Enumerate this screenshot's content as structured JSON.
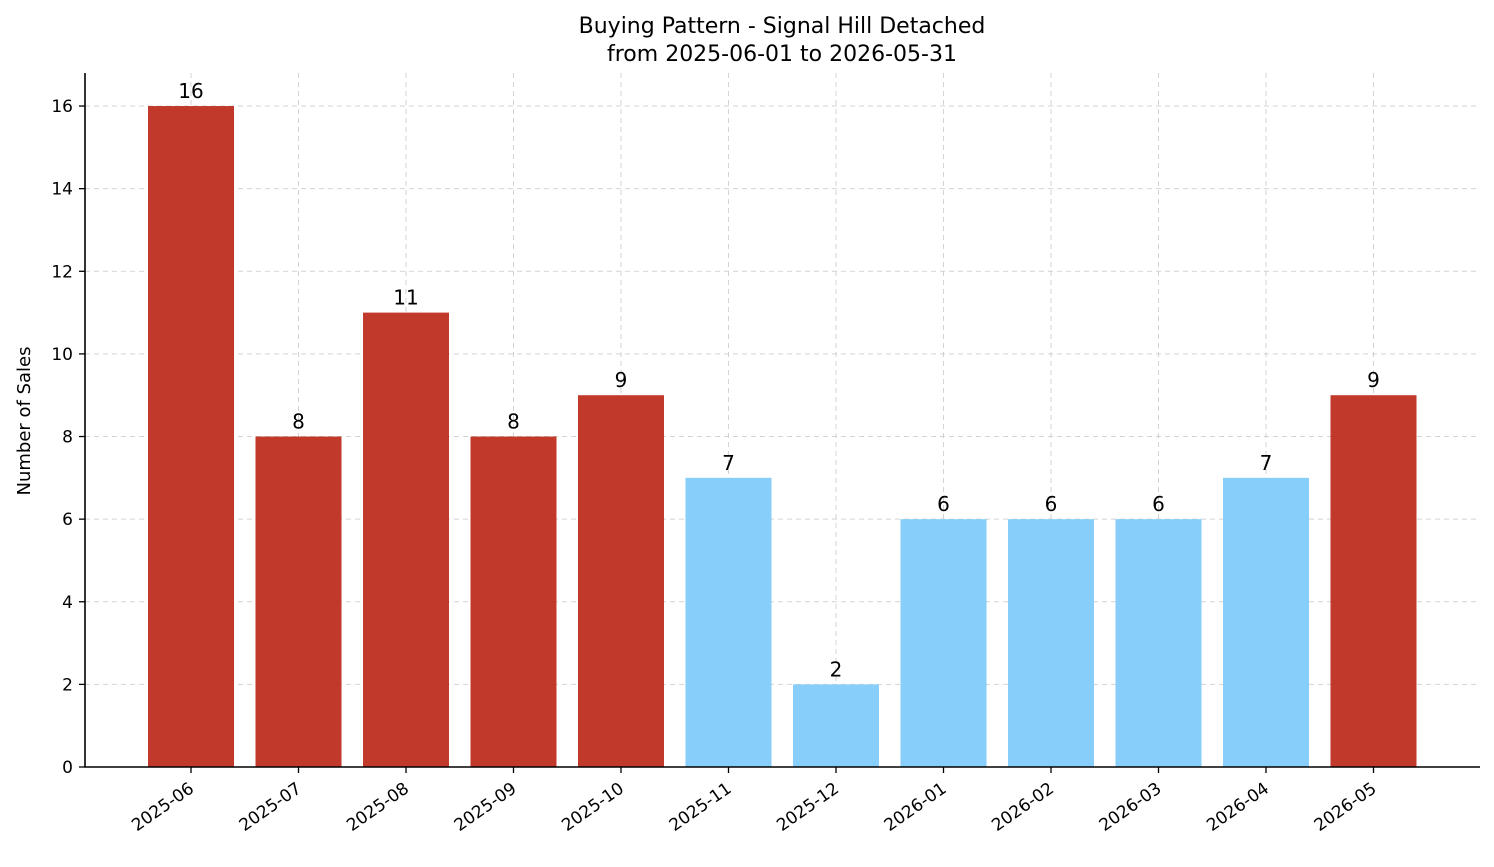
{
  "chart_data": {
    "type": "bar",
    "title": "Buying Pattern - Signal Hill Detached",
    "subtitle": "from 2025-06-01 to 2026-05-31",
    "xlabel": "",
    "ylabel": "Number of Sales",
    "categories": [
      "2025-06",
      "2025-07",
      "2025-08",
      "2025-09",
      "2025-10",
      "2025-11",
      "2025-12",
      "2026-01",
      "2026-02",
      "2026-03",
      "2026-04",
      "2026-05"
    ],
    "values": [
      16,
      8,
      11,
      8,
      9,
      7,
      2,
      6,
      6,
      6,
      7,
      9
    ],
    "bar_colors": [
      "#c0392b",
      "#c0392b",
      "#c0392b",
      "#c0392b",
      "#c0392b",
      "#87cefa",
      "#87cefa",
      "#87cefa",
      "#87cefa",
      "#87cefa",
      "#87cefa",
      "#c0392b"
    ],
    "ylim": [
      0,
      16.8
    ],
    "yticks": [
      0,
      2,
      4,
      6,
      8,
      10,
      12,
      14,
      16
    ],
    "grid": true,
    "data_labels": true
  }
}
